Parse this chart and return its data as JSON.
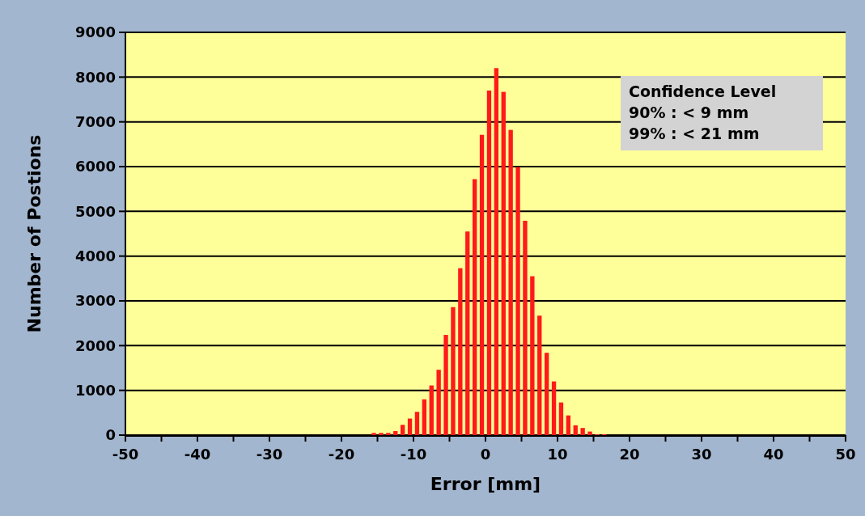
{
  "chart_data": {
    "type": "histogram",
    "xlabel": "Error [mm]",
    "ylabel": "Number of Postions",
    "bins": [
      -16,
      -15,
      -14,
      -13,
      -12,
      -11,
      -10,
      -9,
      -8,
      -7,
      -6,
      -5,
      -4,
      -3,
      -2,
      -1,
      0,
      1,
      2,
      3,
      4,
      5,
      6,
      7,
      8,
      9,
      10,
      11,
      12,
      13,
      14,
      15,
      16,
      17
    ],
    "values": [
      50,
      50,
      50,
      90,
      230,
      370,
      520,
      800,
      1110,
      1460,
      2240,
      2860,
      3730,
      4550,
      5720,
      6710,
      7700,
      8200,
      7670,
      6820,
      5990,
      4790,
      3550,
      2670,
      1840,
      1200,
      730,
      440,
      220,
      160,
      80,
      20,
      20
    ],
    "color": "#ff1a1a",
    "xlim": [
      -50,
      50
    ],
    "xticks": [
      -50,
      {
        "value": -45,
        "label": null
      },
      -40,
      {
        "value": -35,
        "label": null
      },
      -30,
      {
        "value": -25,
        "label": null
      },
      -20,
      {
        "value": -15,
        "label": null
      },
      -10,
      {
        "value": -5,
        "label": null
      },
      0,
      {
        "value": 5,
        "label": null
      },
      10,
      {
        "value": 15,
        "label": null
      },
      20,
      {
        "value": 25,
        "label": null
      },
      30,
      {
        "value": 35,
        "label": null
      },
      40,
      {
        "value": 45,
        "label": null
      },
      50
    ],
    "ylim": [
      0,
      9000
    ],
    "yticks": [
      0,
      1000,
      2000,
      3000,
      4000,
      5000,
      6000,
      7000,
      8000,
      9000
    ],
    "grid": "y",
    "annotations": [
      "Confidence Level",
      "90% : < 9 mm",
      "99% : < 21 mm"
    ]
  }
}
